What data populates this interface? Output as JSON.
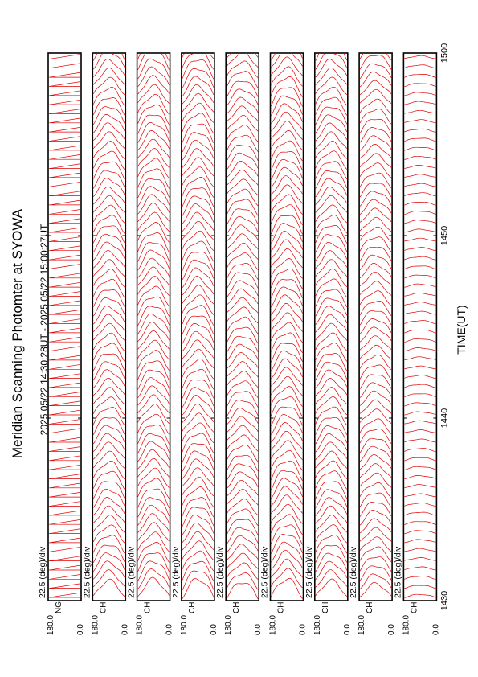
{
  "chart_data": {
    "type": "line",
    "title": "Meridian Scanning Photomter at SYOWA",
    "subtitle": "2025 05/22 14:30:28UT - 2025 05/22 15:00:27UT",
    "xlabel": "TIME(UT)",
    "x_ticks": [
      "1430",
      "1440",
      "1450",
      "1500"
    ],
    "xlim": [
      1430,
      1500
    ],
    "y_ticks": [
      "180.0",
      "0.0"
    ],
    "ylim": [
      0.0,
      180.0
    ],
    "scale_label": "22.5 (deg)/div",
    "line_color": "#e00000",
    "orientation": "rotated-90-ccw",
    "panels": [
      {
        "channel_label": "NG",
        "scans": 60,
        "amplitude": 0.0
      },
      {
        "channel_label": "CH",
        "scans": 60,
        "amplitude": 0.55
      },
      {
        "channel_label": "CH",
        "scans": 60,
        "amplitude": 0.6
      },
      {
        "channel_label": "CH",
        "scans": 60,
        "amplitude": 0.6
      },
      {
        "channel_label": "CH",
        "scans": 60,
        "amplitude": 0.5
      },
      {
        "channel_label": "CH",
        "scans": 60,
        "amplitude": 0.6
      },
      {
        "channel_label": "CH",
        "scans": 60,
        "amplitude": 0.55
      },
      {
        "channel_label": "CH",
        "scans": 60,
        "amplitude": 0.45
      },
      {
        "channel_label": "CH",
        "scans": 60,
        "amplitude": 0.1
      }
    ]
  }
}
